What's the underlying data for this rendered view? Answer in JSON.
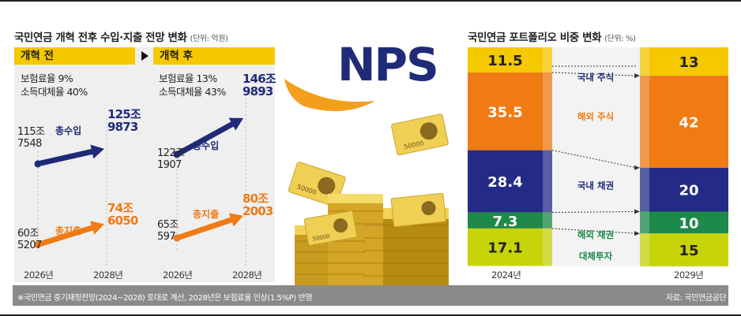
{
  "left": {
    "title": "국민연금 개혁 전후 수입·지출 전망 변화",
    "unit": "(단위: 억원)",
    "before": {
      "tag": "개혁 전",
      "rate1": "보험료율 9%",
      "rate2": "소득대체율 40%",
      "income_label": "총수입",
      "expense_label": "총지출",
      "income_start": [
        "115조",
        "7548"
      ],
      "income_end": [
        "125조",
        "9873"
      ],
      "expense_start": [
        "60조",
        "5207"
      ],
      "expense_end": [
        "74조",
        "6050"
      ],
      "year_start": "2026년",
      "year_end": "2028년"
    },
    "after": {
      "tag": "개혁 후",
      "rate1": "보험료율 13%",
      "rate2": "소득대체율 43%",
      "income_label": "총수입",
      "expense_label": "총지출",
      "income_start": [
        "122조",
        "1907"
      ],
      "income_end": [
        "146조",
        "9893"
      ],
      "expense_start": [
        "65조",
        "597"
      ],
      "expense_end": [
        "80조",
        "2003"
      ],
      "year_start": "2026년",
      "year_end": "2028년"
    }
  },
  "center": {
    "logo_text": "NPS",
    "banknote_label": "50000"
  },
  "right": {
    "title": "국민연금 포트폴리오 비중 변화",
    "unit": "(단위: %)"
  },
  "footer": {
    "note": "※국민연금 중기재정전망(2024~2028) 토대로 계산, 2028년은 보험료율 인상(1.5%P) 반영",
    "source": "자료: 국민연금공단"
  },
  "colors": {
    "yellow": "#f5c800",
    "orange": "#f07a14",
    "navy": "#1f2a78",
    "navy_bar": "#232b86",
    "green": "#1d8a4a",
    "lime": "#c8d40a",
    "panel_gray": "#efefef"
  },
  "chart_data": [
    {
      "type": "line",
      "title": "개혁 전",
      "x": [
        "2026년",
        "2028년"
      ],
      "series": [
        {
          "name": "총수입",
          "values": [
            1157548,
            1259873
          ]
        },
        {
          "name": "총지출",
          "values": [
            605207,
            746050
          ]
        }
      ],
      "unit": "억원"
    },
    {
      "type": "line",
      "title": "개혁 후",
      "x": [
        "2026년",
        "2028년"
      ],
      "series": [
        {
          "name": "총수입",
          "values": [
            1221907,
            1469893
          ]
        },
        {
          "name": "총지출",
          "values": [
            650597,
            802003
          ]
        }
      ],
      "unit": "억원"
    },
    {
      "type": "bar",
      "stacked": true,
      "title": "국민연금 포트폴리오 비중 변화",
      "categories": [
        "2024년",
        "2029년"
      ],
      "series": [
        {
          "name": "국내 주식",
          "values": [
            11.5,
            13
          ],
          "color": "#f5c800"
        },
        {
          "name": "해외 주식",
          "values": [
            35.5,
            42
          ],
          "color": "#f07a14"
        },
        {
          "name": "국내 채권",
          "values": [
            28.4,
            20
          ],
          "color": "#232b86"
        },
        {
          "name": "해외 채권",
          "values": [
            7.3,
            10
          ],
          "color": "#1d8a4a"
        },
        {
          "name": "대체투자",
          "values": [
            17.1,
            15
          ],
          "color": "#c8d40a"
        }
      ],
      "unit": "%",
      "ylim": [
        0,
        100
      ]
    }
  ]
}
